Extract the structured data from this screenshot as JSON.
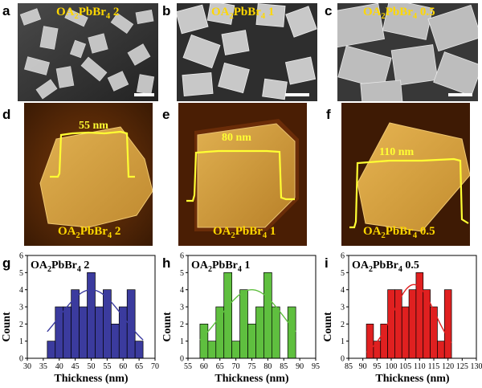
{
  "panel_letters": [
    "a",
    "b",
    "c",
    "d",
    "e",
    "f",
    "g",
    "h",
    "i"
  ],
  "sem_panels": [
    {
      "label": "OA₂PbBr₄ 2"
    },
    {
      "label": "OA₂PbBr₄ 1"
    },
    {
      "label": "OA₂PbBr₄ 0.5"
    }
  ],
  "afm_panels": [
    {
      "label": "OA₂PbBr₄ 2",
      "thickness_label": "55 nm"
    },
    {
      "label": "OA₂PbBr₄ 1",
      "thickness_label": "80 nm"
    },
    {
      "label": "OA₂PbBr₄ 0.5",
      "thickness_label": "110 nm"
    }
  ],
  "colors": {
    "sem_bg": "#3a3a3a",
    "sem_crystal": "#d8d8d8",
    "label_yellow": "#ffd800",
    "afm_bg": "#5a2a08",
    "afm_flake": "#d8a848",
    "profile": "#ffff33",
    "bar_blue": "#3b3b9e",
    "bar_green": "#5fbf3f",
    "bar_red": "#e02020"
  },
  "chart_data": [
    {
      "type": "bar",
      "title": "OA₂PbBr₄ 2",
      "xlabel": "Thickness (nm)",
      "ylabel": "Count",
      "xlim": [
        30,
        70
      ],
      "ylim": [
        0,
        6
      ],
      "xticks": [
        30,
        35,
        40,
        45,
        50,
        55,
        60,
        65,
        70
      ],
      "yticks": [
        0,
        1,
        2,
        3,
        4,
        5,
        6
      ],
      "bin_width": 2.5,
      "x": [
        37.5,
        40,
        42.5,
        45,
        47.5,
        50,
        52.5,
        55,
        57.5,
        60,
        62.5,
        65
      ],
      "values": [
        1,
        3,
        3,
        4,
        3,
        5,
        3,
        4,
        2,
        3,
        4,
        1
      ],
      "fit": {
        "type": "gaussian",
        "center": 50,
        "sigma": 10,
        "amplitude": 4
      },
      "color": "#3b3b9e"
    },
    {
      "type": "bar",
      "title": "OA₂PbBr₄ 1",
      "xlabel": "Thickness (nm)",
      "ylabel": "Count",
      "xlim": [
        55,
        95
      ],
      "ylim": [
        0,
        6
      ],
      "xticks": [
        55,
        60,
        65,
        70,
        75,
        80,
        85,
        90,
        95
      ],
      "yticks": [
        0,
        1,
        2,
        3,
        4,
        5,
        6
      ],
      "bin_width": 2.5,
      "x": [
        60,
        62.5,
        65,
        67.5,
        70,
        72.5,
        75,
        77.5,
        80,
        82.5,
        85,
        87.5
      ],
      "values": [
        2,
        1,
        3,
        5,
        1,
        4,
        2,
        3,
        5,
        3,
        0,
        3
      ],
      "fit": {
        "type": "gaussian",
        "center": 75,
        "sigma": 10,
        "amplitude": 4
      },
      "color": "#5fbf3f"
    },
    {
      "type": "bar",
      "title": "OA₂PbBr₄ 0.5",
      "xlabel": "Thickness (nm)",
      "ylabel": "Count",
      "xlim": [
        85,
        130
      ],
      "ylim": [
        0,
        6
      ],
      "xticks": [
        85,
        90,
        95,
        100,
        105,
        110,
        115,
        120,
        125,
        130
      ],
      "yticks": [
        0,
        1,
        2,
        3,
        4,
        5,
        6
      ],
      "bin_width": 2.5,
      "x": [
        92.5,
        95,
        97.5,
        100,
        102.5,
        105,
        107.5,
        110,
        112.5,
        115,
        117.5,
        120
      ],
      "values": [
        2,
        1,
        2,
        4,
        4,
        3,
        4,
        5,
        4,
        3,
        1,
        4
      ],
      "fit": {
        "type": "gaussian",
        "center": 108,
        "sigma": 7.5,
        "amplitude": 4.3
      },
      "color": "#e02020"
    }
  ]
}
